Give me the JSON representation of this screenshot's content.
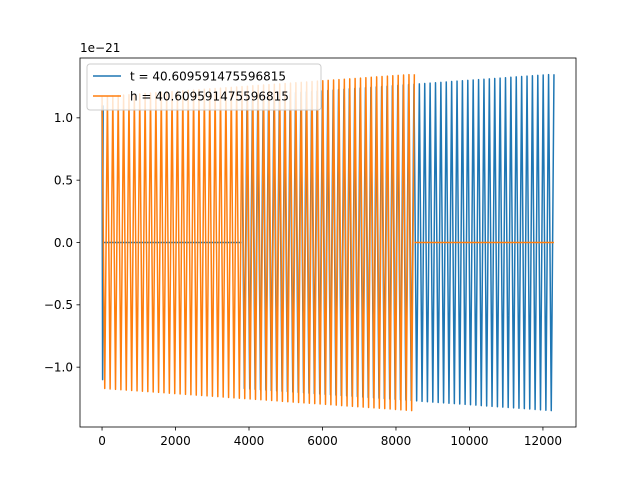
{
  "chart_data": {
    "type": "line",
    "title": "",
    "xlabel": "",
    "ylabel": "",
    "offset_text": "1e−21",
    "xlim": [
      -600,
      12900
    ],
    "ylim": [
      -1.48,
      1.48
    ],
    "xticks": [
      0,
      2000,
      4000,
      6000,
      8000,
      10000,
      12000
    ],
    "xtick_labels": [
      "0",
      "2000",
      "4000",
      "6000",
      "8000",
      "10000",
      "12000"
    ],
    "yticks": [
      -1.0,
      -0.5,
      0.0,
      0.5,
      1.0
    ],
    "ytick_labels": [
      "−1.0",
      "−0.5",
      "0.0",
      "0.5",
      "1.0"
    ],
    "grid": false,
    "legend_position": "upper-left",
    "series": [
      {
        "name": "t = 40.609591475596815",
        "color": "#1f77b4",
        "segments": [
          {
            "x_start": 0,
            "x_end": 30,
            "kind": "oscillation",
            "amp_start": 1.1,
            "amp_end": 1.1,
            "cycles": 0.5
          },
          {
            "x_start": 30,
            "x_end": 3800,
            "kind": "flat",
            "value": 0.0
          },
          {
            "x_start": 3800,
            "x_end": 12300,
            "kind": "oscillation",
            "amp_start": 1.17,
            "amp_end": 1.35,
            "cycles": 58
          }
        ]
      },
      {
        "name": "h = 40.609591475596815",
        "color": "#ff7f0e",
        "segments": [
          {
            "x_start": 0,
            "x_end": 8500,
            "kind": "oscillation",
            "amp_start": 1.17,
            "amp_end": 1.35,
            "cycles": 58
          },
          {
            "x_start": 8500,
            "x_end": 12300,
            "kind": "flat",
            "value": 0.0
          }
        ]
      }
    ]
  }
}
